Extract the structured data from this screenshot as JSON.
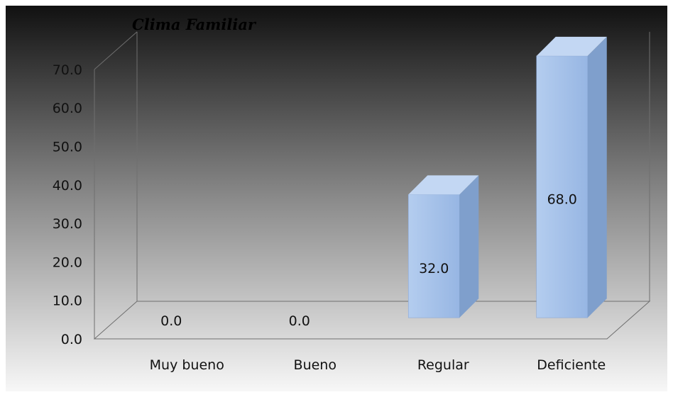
{
  "chart_data": {
    "type": "bar",
    "title": "Clima Familiar",
    "categories": [
      "Muy bueno",
      "Bueno",
      "Regular",
      "Deficiente"
    ],
    "values": [
      0.0,
      0.0,
      32.0,
      68.0
    ],
    "data_labels": [
      "0.0",
      "0.0",
      "32.0",
      "68.0"
    ],
    "ylim": [
      0,
      70
    ],
    "y_ticks": [
      "0.0",
      "10.0",
      "20.0",
      "30.0",
      "40.0",
      "50.0",
      "60.0",
      "70.0"
    ],
    "xlabel": "",
    "ylabel": "",
    "grid": false,
    "style": "3d-column",
    "colors": {
      "bar_front": "#a6c3ea",
      "bar_top": "#c3d7f3",
      "bar_side": "#7f9fcc",
      "background_top": "#111111",
      "background_bottom": "#f7f7f7"
    }
  }
}
